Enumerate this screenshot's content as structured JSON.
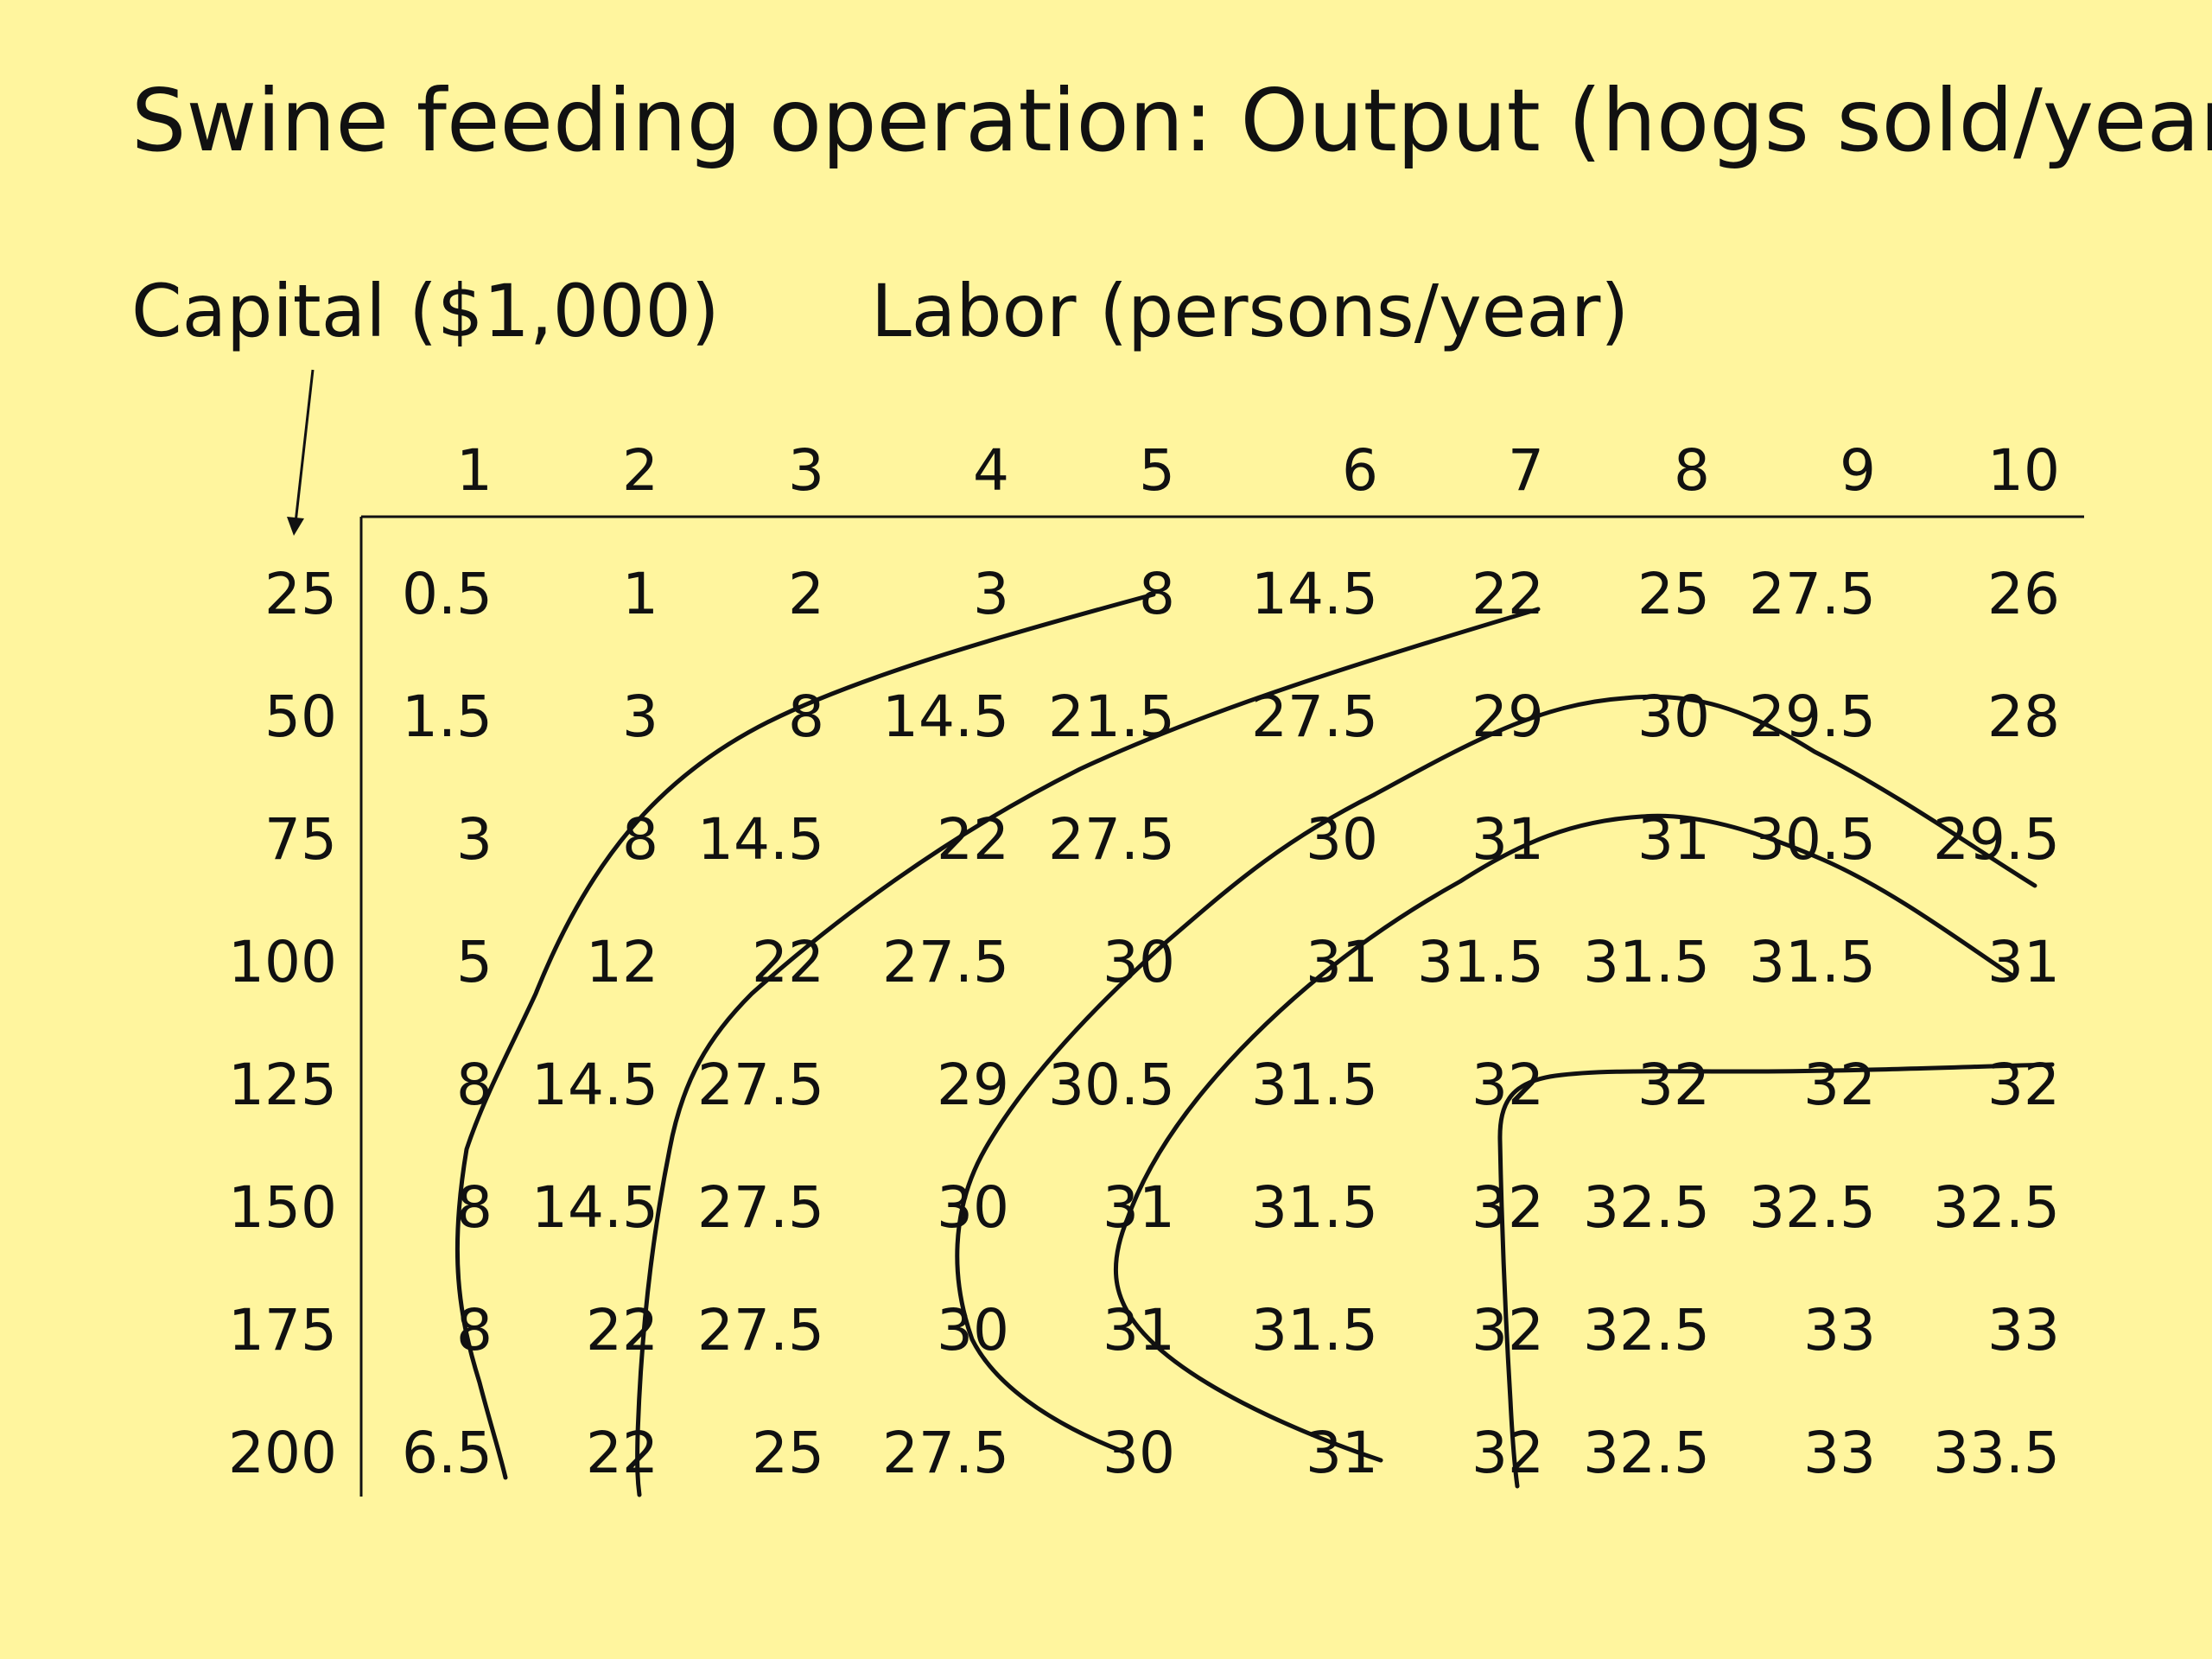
{
  "slide": {
    "title": "Swine feeding operation: Output (hogs sold/year)",
    "capital_label": "Capital ($1,000)",
    "labor_label": "Labor (persons/year)"
  },
  "table": {
    "labor_levels": [
      "1",
      "2",
      "3",
      "4",
      "5",
      "6",
      "7",
      "8",
      "9",
      "10"
    ],
    "capital_levels": [
      "25",
      "50",
      "75",
      "100",
      "125",
      "150",
      "175",
      "200"
    ],
    "rows": [
      [
        "0.5",
        "1",
        "2",
        "3",
        "8",
        "14.5",
        "22",
        "25",
        "27.5",
        "26"
      ],
      [
        "1.5",
        "3",
        "8",
        "14.5",
        "21.5",
        "27.5",
        "29",
        "30",
        "29.5",
        "28"
      ],
      [
        "3",
        "8",
        "14.5",
        "22",
        "27.5",
        "30",
        "31",
        "31",
        "30.5",
        "29.5"
      ],
      [
        "5",
        "12",
        "22",
        "27.5",
        "30",
        "31",
        "31.5",
        "31.5",
        "31.5",
        "31"
      ],
      [
        "8",
        "14.5",
        "27.5",
        "29",
        "30.5",
        "31.5",
        "32",
        "32",
        "32",
        "32"
      ],
      [
        "8",
        "14.5",
        "27.5",
        "30",
        "31",
        "31.5",
        "32",
        "32.5",
        "32.5",
        "32.5"
      ],
      [
        "8",
        "22",
        "27.5",
        "30",
        "31",
        "31.5",
        "32",
        "32.5",
        "33",
        "33"
      ],
      [
        "6.5",
        "22",
        "25",
        "27.5",
        "30",
        "31",
        "32",
        "32.5",
        "33",
        "33.5"
      ]
    ]
  },
  "colors": {
    "background": "#fff59e",
    "ink": "#111111"
  }
}
